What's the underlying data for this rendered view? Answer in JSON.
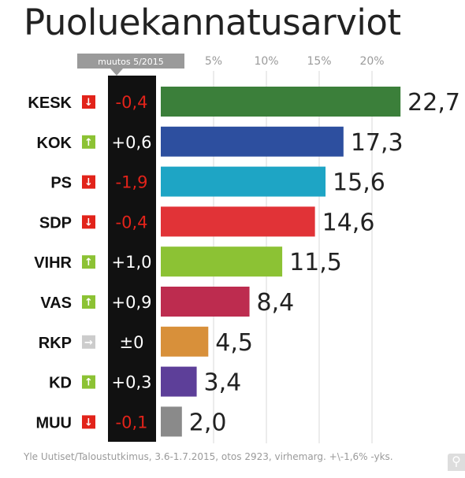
{
  "chart_data": {
    "type": "bar",
    "orientation": "horizontal",
    "title": "Puoluekannatusarviot",
    "change_column_header": "muutos 5/2015",
    "categories": [
      "KESK",
      "KOK",
      "PS",
      "SDP",
      "VIHR",
      "VAS",
      "RKP",
      "KD",
      "MUU"
    ],
    "values": [
      22.7,
      17.3,
      15.6,
      14.6,
      11.5,
      8.4,
      4.5,
      3.4,
      2.0
    ],
    "value_labels": [
      "22,7",
      "17,3",
      "15,6",
      "14,6",
      "11,5",
      "8,4",
      "4,5",
      "3,4",
      "2,0"
    ],
    "changes": [
      "-0,4",
      "+0,6",
      "-1,9",
      "-0,4",
      "+1,0",
      "+0,9",
      "±0",
      "+0,3",
      "-0,1"
    ],
    "change_direction": [
      "down",
      "up",
      "down",
      "down",
      "up",
      "up",
      "same",
      "up",
      "down"
    ],
    "bar_colors": [
      "#3b7f3a",
      "#2d4f9f",
      "#1ea5c5",
      "#e13337",
      "#8cc234",
      "#bd2c4f",
      "#d8903a",
      "#5d3f99",
      "#8a8a8a"
    ],
    "xticks": [
      "5%",
      "10%",
      "15%",
      "20%"
    ],
    "xtick_values": [
      5,
      10,
      15,
      20
    ],
    "xlim": [
      0,
      23
    ],
    "grid": true,
    "source": "Yle Uutiset/Taloustutkimus, 3.6-1.7.2015, otos 2923, virhemarg. +\\-1,6% -yks."
  },
  "colors": {
    "up": "#8cc234",
    "down": "#e2231a",
    "same": "#cccccc",
    "change_positive_text": "#ffffff",
    "change_negative_text": "#e2231a",
    "change_column_bg": "#111111"
  }
}
